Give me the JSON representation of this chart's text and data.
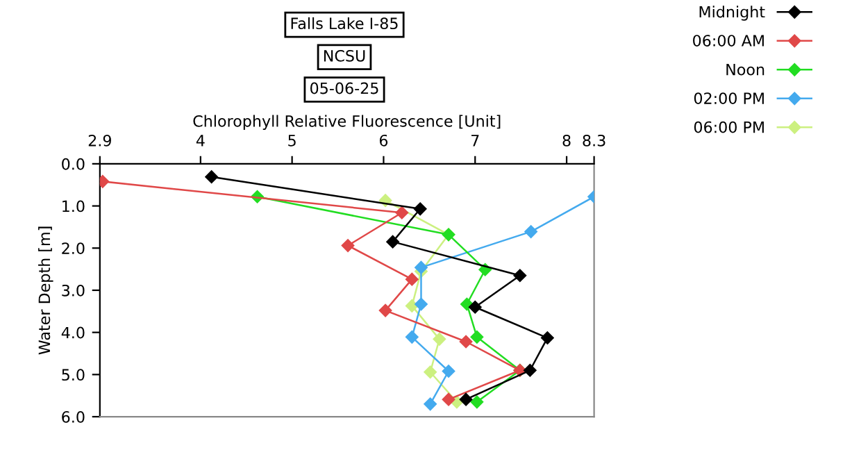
{
  "chart_data": {
    "type": "line",
    "title": "Falls Lake I-85",
    "subtitle": "NCSU",
    "annotations": [
      "05-06-25"
    ],
    "xlabel": "Chlorophyll Relative Fluorescence [Unit]",
    "ylabel": "Water Depth [m]",
    "xlim": [
      2.9,
      8.3
    ],
    "xticks": [
      2.9,
      4,
      5,
      6,
      7,
      8,
      8.3
    ],
    "ylim": [
      6,
      0
    ],
    "yticks": [
      {
        "value": 0,
        "label": "0.0"
      },
      {
        "value": 1,
        "label": "1.0"
      },
      {
        "value": 2,
        "label": "2.0"
      },
      {
        "value": 3,
        "label": "3.0"
      },
      {
        "value": 4,
        "label": "4.0"
      },
      {
        "value": 5,
        "label": "5.0"
      },
      {
        "value": 6,
        "label": "6.0"
      }
    ],
    "grid": false,
    "legend": "right",
    "marker": "diamond",
    "line_style": "solid",
    "series": [
      {
        "name": "Midnight",
        "color": "#000000",
        "x": [
          4.12,
          6.4,
          6.1,
          7.49,
          7.0,
          7.79,
          7.6,
          6.9
        ],
        "values": [
          0.31,
          1.07,
          1.85,
          2.65,
          3.4,
          4.13,
          4.9,
          5.59
        ]
      },
      {
        "name": "06:00 AM",
        "color": "#e04848",
        "x": [
          2.93,
          6.2,
          5.61,
          6.31,
          6.02,
          6.9,
          7.49,
          6.71
        ],
        "values": [
          0.42,
          1.16,
          1.94,
          2.74,
          3.48,
          4.22,
          4.9,
          5.59
        ]
      },
      {
        "name": "Noon",
        "color": "#22dd22",
        "x": [
          4.62,
          6.71,
          7.11,
          6.91,
          7.02,
          7.49,
          7.02
        ],
        "values": [
          0.78,
          1.68,
          2.51,
          3.33,
          4.11,
          4.9,
          5.65
        ]
      },
      {
        "name": "02:00 PM",
        "color": "#44aaee",
        "x": [
          8.3,
          7.61,
          6.41,
          6.41,
          6.31,
          6.71,
          6.51
        ],
        "values": [
          0.78,
          1.61,
          2.46,
          3.33,
          4.11,
          4.92,
          5.7
        ]
      },
      {
        "name": "06:00 PM",
        "color": "#ccf080",
        "x": [
          6.02,
          6.71,
          6.41,
          6.31,
          6.61,
          6.51,
          6.8
        ],
        "values": [
          0.87,
          1.68,
          2.55,
          3.37,
          4.16,
          4.94,
          5.65
        ]
      }
    ]
  }
}
